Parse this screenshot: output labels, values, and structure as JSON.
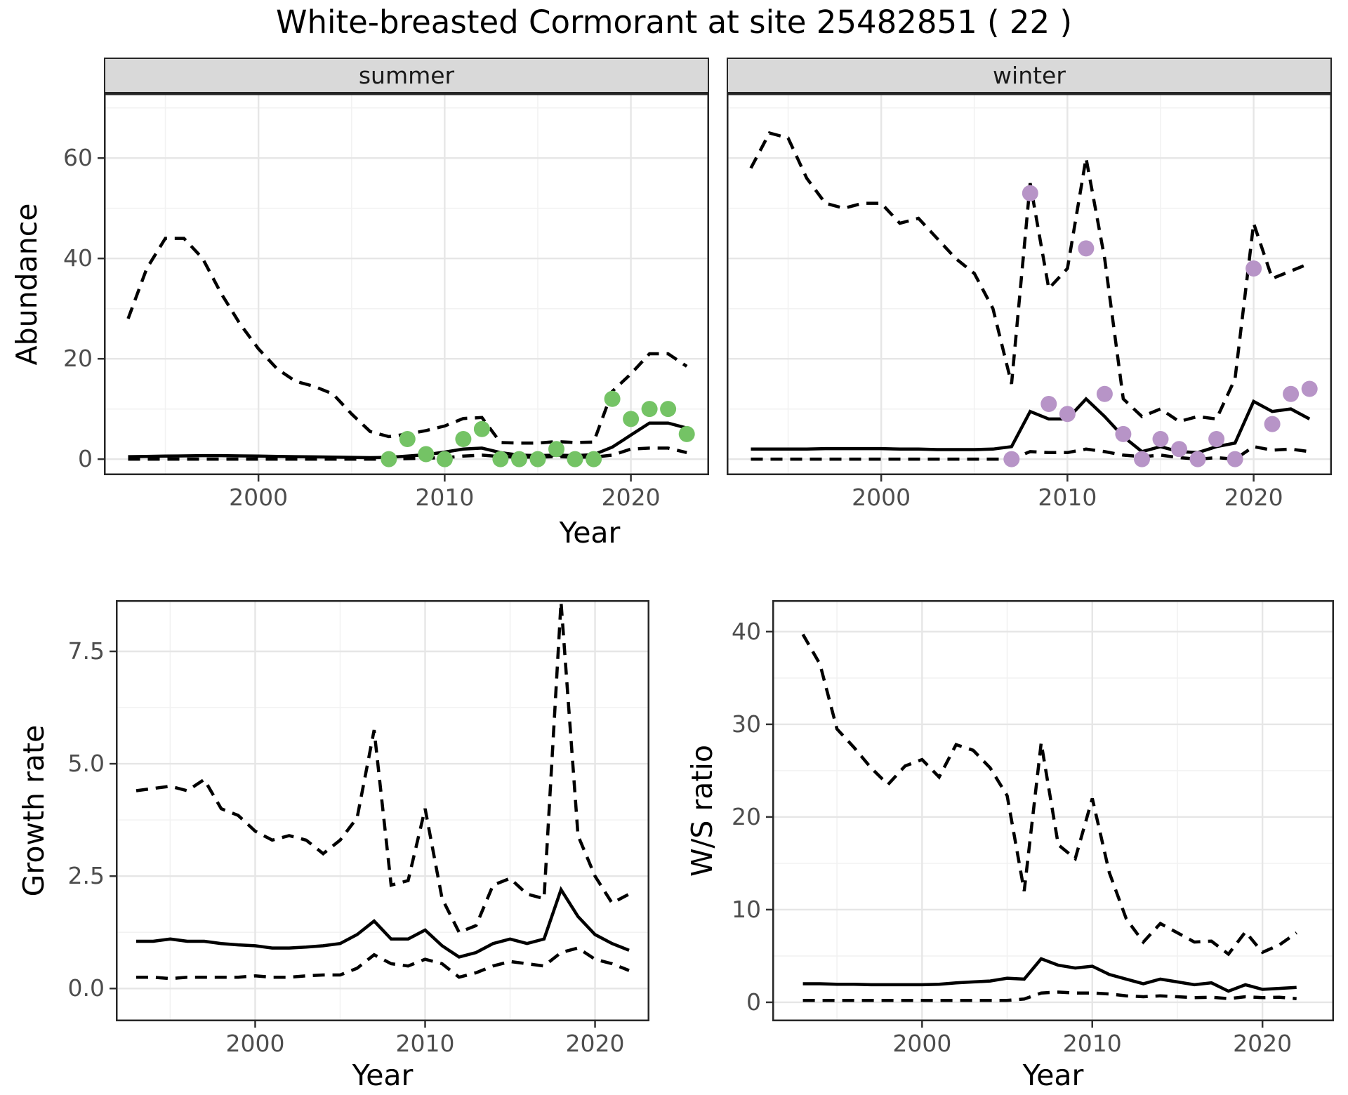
{
  "ui": {
    "title": "White-breasted Cormorant at site 25482851 ( 22 )"
  },
  "colors": {
    "summer_point": "#74c365",
    "winter_point": "#b794c7",
    "line": "#000000",
    "strip_bg": "#d9d9d9",
    "grid_major": "#e6e6e6",
    "grid_minor": "#f2f2f2",
    "axis_text": "#4d4d4d",
    "panel_border": "#262626"
  },
  "chart_data": [
    {
      "type": "line",
      "title": "Abundance by season (faceted: summer / winter)",
      "xlabel": "Year",
      "ylabel": "Abundance",
      "x": [
        1993,
        1994,
        1995,
        1996,
        1997,
        1998,
        1999,
        2000,
        2001,
        2002,
        2003,
        2004,
        2005,
        2006,
        2007,
        2008,
        2009,
        2010,
        2011,
        2012,
        2013,
        2014,
        2015,
        2016,
        2017,
        2018,
        2019,
        2020,
        2021,
        2022,
        2023
      ],
      "xlim": [
        1991.7,
        2024.2
      ],
      "ylim": [
        -3.2,
        72.9
      ],
      "xticks": [
        2000,
        2010,
        2020
      ],
      "xtick_labels": [
        "2000",
        "2010",
        "2020"
      ],
      "xminor": [
        1995,
        2005,
        2015
      ],
      "yticks": [
        0,
        20,
        40,
        60
      ],
      "ytick_labels": [
        "0",
        "20",
        "40",
        "60"
      ],
      "yminor": [
        10,
        30,
        50,
        70
      ],
      "legend": "none",
      "grid": "on",
      "facets": [
        {
          "name": "summer",
          "series": [
            {
              "name": "upper_95ci",
              "style": "dashed",
              "values": [
                28,
                38,
                44,
                44,
                40,
                33,
                27,
                22,
                18,
                15.5,
                14.5,
                13,
                9,
                5.5,
                4.5,
                5,
                5.7,
                6.6,
                8.1,
                8.3,
                3.3,
                3.2,
                3.2,
                3.5,
                3.3,
                3.4,
                13.5,
                17,
                21,
                21,
                18.5
              ]
            },
            {
              "name": "median",
              "style": "solid",
              "values": [
                0.5,
                0.55,
                0.6,
                0.65,
                0.7,
                0.7,
                0.65,
                0.6,
                0.55,
                0.5,
                0.45,
                0.4,
                0.35,
                0.3,
                0.35,
                0.6,
                0.9,
                1.4,
                2.0,
                2.2,
                1.3,
                0.8,
                0.7,
                0.8,
                0.7,
                0.9,
                2.4,
                4.8,
                7.2,
                7.2,
                6.2
              ]
            },
            {
              "name": "lower_95ci",
              "style": "dashed",
              "values": [
                0,
                0,
                0,
                0,
                0,
                0,
                0,
                0,
                0,
                0,
                0,
                0,
                0,
                0,
                0,
                0.1,
                0.2,
                0.3,
                0.6,
                0.8,
                0.5,
                0.4,
                0.4,
                0.5,
                0.4,
                0.4,
                0.8,
                2.0,
                2.2,
                2.2,
                1.3
              ]
            }
          ],
          "points": {
            "name": "observed_counts",
            "color": "#74c365",
            "x": [
              2007,
              2008,
              2009,
              2010,
              2011,
              2012,
              2013,
              2014,
              2015,
              2016,
              2017,
              2018,
              2019,
              2020,
              2021,
              2022,
              2023
            ],
            "y": [
              0,
              4,
              1,
              0,
              4,
              6,
              0,
              0,
              0,
              2,
              0,
              0,
              12,
              8,
              10,
              10,
              5
            ]
          }
        },
        {
          "name": "winter",
          "series": [
            {
              "name": "upper_95ci",
              "style": "dashed",
              "values": [
                58,
                65,
                64,
                56,
                51,
                50,
                51,
                51,
                47,
                48,
                44,
                40,
                37,
                30,
                15,
                55,
                34,
                38,
                60,
                40,
                12,
                8.5,
                10,
                7.5,
                8.5,
                8,
                16,
                47,
                36,
                37.5,
                39
              ]
            },
            {
              "name": "median",
              "style": "solid",
              "values": [
                2,
                2,
                2,
                2,
                2.1,
                2.1,
                2.1,
                2.1,
                2,
                2,
                1.9,
                1.9,
                1.9,
                2,
                2.5,
                9.5,
                8,
                8,
                12,
                8.5,
                4.5,
                1.5,
                2.5,
                1.5,
                1.3,
                2.5,
                3.2,
                11.5,
                9.5,
                10,
                8
              ]
            },
            {
              "name": "lower_95ci",
              "style": "dashed",
              "values": [
                0,
                0,
                0,
                0,
                0,
                0,
                0,
                0,
                0,
                0,
                0,
                0,
                0,
                0,
                0,
                1.5,
                1.3,
                1.3,
                2,
                1.5,
                0.8,
                0.5,
                0.8,
                0.3,
                0,
                0.3,
                0,
                2.5,
                1.8,
                2,
                1.5
              ]
            }
          ],
          "points": {
            "name": "observed_counts",
            "color": "#b794c7",
            "x": [
              2007,
              2008,
              2009,
              2010,
              2011,
              2012,
              2013,
              2014,
              2015,
              2016,
              2017,
              2018,
              2019,
              2020,
              2021,
              2022,
              2023
            ],
            "y": [
              0,
              53,
              11,
              9,
              42,
              13,
              5,
              0,
              4,
              2,
              0,
              4,
              0,
              38,
              7,
              13,
              14
            ]
          }
        }
      ]
    },
    {
      "type": "line",
      "title": "Growth rate",
      "xlabel": "Year",
      "ylabel": "Growth rate",
      "x": [
        1993,
        1994,
        1995,
        1996,
        1997,
        1998,
        1999,
        2000,
        2001,
        2002,
        2003,
        2004,
        2005,
        2006,
        2007,
        2008,
        2009,
        2010,
        2011,
        2012,
        2013,
        2014,
        2015,
        2016,
        2017,
        2018,
        2019,
        2020,
        2021,
        2022
      ],
      "xlim": [
        1991.8,
        2023.2
      ],
      "ylim": [
        -0.73,
        8.64
      ],
      "xticks": [
        2000,
        2010,
        2020
      ],
      "xtick_labels": [
        "2000",
        "2010",
        "2020"
      ],
      "xminor": [
        1995,
        2005,
        2015
      ],
      "yticks": [
        0,
        2.5,
        5,
        7.5
      ],
      "ytick_labels": [
        "0.0",
        "2.5",
        "5.0",
        "7.5"
      ],
      "yminor": [
        1.25,
        3.75,
        6.25
      ],
      "legend": "none",
      "grid": "on",
      "series": [
        {
          "name": "upper_95ci",
          "style": "dashed",
          "values": [
            4.4,
            4.45,
            4.5,
            4.4,
            4.65,
            4.0,
            3.85,
            3.5,
            3.3,
            3.4,
            3.3,
            3.0,
            3.3,
            3.8,
            5.75,
            2.3,
            2.4,
            4.0,
            2.0,
            1.25,
            1.4,
            2.3,
            2.45,
            2.1,
            2.0,
            8.6,
            3.4,
            2.5,
            1.9,
            2.1
          ]
        },
        {
          "name": "median",
          "style": "solid",
          "values": [
            1.05,
            1.05,
            1.1,
            1.05,
            1.05,
            1.0,
            0.97,
            0.95,
            0.9,
            0.9,
            0.92,
            0.95,
            1.0,
            1.2,
            1.5,
            1.1,
            1.1,
            1.3,
            0.95,
            0.7,
            0.8,
            1.0,
            1.1,
            1.0,
            1.1,
            2.2,
            1.6,
            1.2,
            1.0,
            0.85
          ]
        },
        {
          "name": "lower_95ci",
          "style": "dashed",
          "values": [
            0.25,
            0.25,
            0.22,
            0.25,
            0.25,
            0.25,
            0.25,
            0.28,
            0.25,
            0.25,
            0.28,
            0.3,
            0.3,
            0.45,
            0.75,
            0.55,
            0.5,
            0.65,
            0.55,
            0.25,
            0.35,
            0.5,
            0.6,
            0.55,
            0.5,
            0.8,
            0.9,
            0.65,
            0.55,
            0.4
          ]
        }
      ]
    },
    {
      "type": "line",
      "title": "W/S ratio",
      "xlabel": "Year",
      "ylabel": "W/S ratio",
      "x": [
        1993,
        1994,
        1995,
        1996,
        1997,
        1998,
        1999,
        2000,
        2001,
        2002,
        2003,
        2004,
        2005,
        2006,
        2007,
        2008,
        2009,
        2010,
        2011,
        2012,
        2013,
        2014,
        2015,
        2016,
        2017,
        2018,
        2019,
        2020,
        2021,
        2022
      ],
      "xlim": [
        1991.2,
        2024.2
      ],
      "ylim": [
        -2.05,
        43.4
      ],
      "xticks": [
        2000,
        2010,
        2020
      ],
      "xtick_labels": [
        "2000",
        "2010",
        "2020"
      ],
      "xminor": [
        1995,
        2005,
        2015
      ],
      "yticks": [
        0,
        10,
        20,
        30,
        40
      ],
      "ytick_labels": [
        "0",
        "10",
        "20",
        "30",
        "40"
      ],
      "yminor": [
        5,
        15,
        25,
        35
      ],
      "legend": "none",
      "grid": "on",
      "series": [
        {
          "name": "upper_95ci",
          "style": "dashed",
          "values": [
            39.7,
            36.5,
            29.5,
            27.5,
            25.3,
            23.5,
            25.5,
            26.2,
            24.3,
            27.8,
            27.2,
            25.3,
            22.3,
            12,
            28,
            17,
            15.5,
            22,
            14,
            9,
            6.5,
            8.5,
            7.5,
            6.5,
            6.6,
            5.2,
            7.6,
            5.4,
            6.2,
            7.5
          ]
        },
        {
          "name": "median",
          "style": "solid",
          "values": [
            2.0,
            2.0,
            1.95,
            1.95,
            1.9,
            1.9,
            1.9,
            1.9,
            1.95,
            2.1,
            2.2,
            2.3,
            2.6,
            2.5,
            4.7,
            4.0,
            3.7,
            3.9,
            3.0,
            2.5,
            2.0,
            2.5,
            2.2,
            1.9,
            2.1,
            1.2,
            1.9,
            1.4,
            1.5,
            1.6
          ]
        },
        {
          "name": "lower_95ci",
          "style": "dashed",
          "values": [
            0.2,
            0.2,
            0.2,
            0.2,
            0.2,
            0.2,
            0.2,
            0.2,
            0.2,
            0.2,
            0.2,
            0.2,
            0.2,
            0.35,
            1.0,
            1.1,
            1.0,
            1.0,
            0.9,
            0.7,
            0.6,
            0.7,
            0.6,
            0.5,
            0.55,
            0.4,
            0.6,
            0.5,
            0.55,
            0.4
          ]
        }
      ]
    }
  ]
}
